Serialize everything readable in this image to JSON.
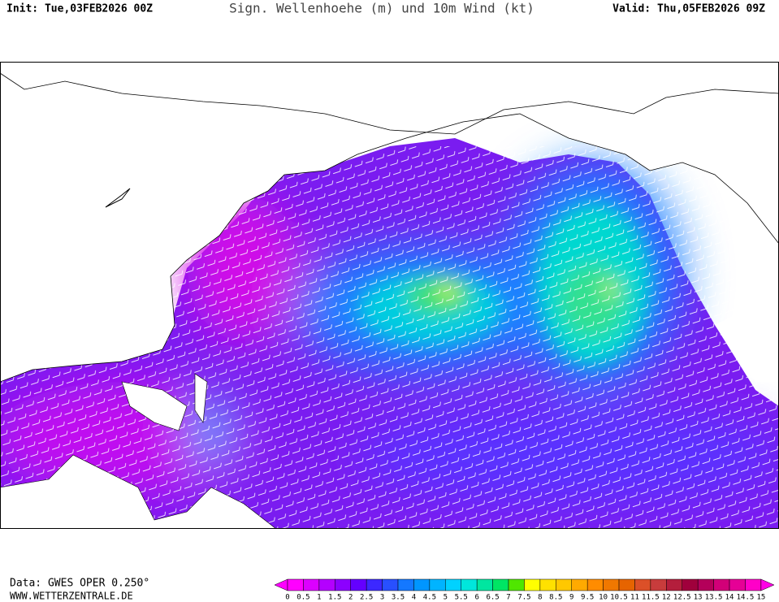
{
  "header": {
    "init": "Init: Tue,03FEB2026 00Z",
    "title": "Sign. Wellenhoehe (m) und 10m Wind (kt)",
    "valid": "Valid: Thu,05FEB2026 09Z"
  },
  "footer": {
    "data": "Data: GWES OPER 0.250°",
    "site": "WWW.WETTERZENTRALE.DE"
  },
  "colorbar": {
    "labels": [
      0,
      0.5,
      1,
      1.5,
      2,
      2.5,
      3,
      3.5,
      4,
      4.5,
      5,
      5.5,
      6,
      6.5,
      7,
      7.5,
      8,
      8.5,
      9,
      9.5,
      10,
      10.5,
      11,
      11.5,
      12,
      12.5,
      13,
      13.5,
      14,
      14.5,
      15
    ],
    "colors": [
      "#ff00ff",
      "#dc00ff",
      "#b400ff",
      "#8c00ff",
      "#6400ff",
      "#3c28ff",
      "#2850ff",
      "#1478ff",
      "#0096ff",
      "#00b4ff",
      "#00d2ff",
      "#00e6dc",
      "#00e6a0",
      "#00e664",
      "#50e600",
      "#ffff00",
      "#ffe100",
      "#ffc800",
      "#ffaa00",
      "#ff8c00",
      "#f07800",
      "#e66400",
      "#dc5028",
      "#c83c3c",
      "#b41e3c",
      "#a0003c",
      "#b4005a",
      "#d20078",
      "#e60096",
      "#ff00c8"
    ],
    "under_color": "#ff00ff",
    "over_color": "#ff00e6"
  }
}
